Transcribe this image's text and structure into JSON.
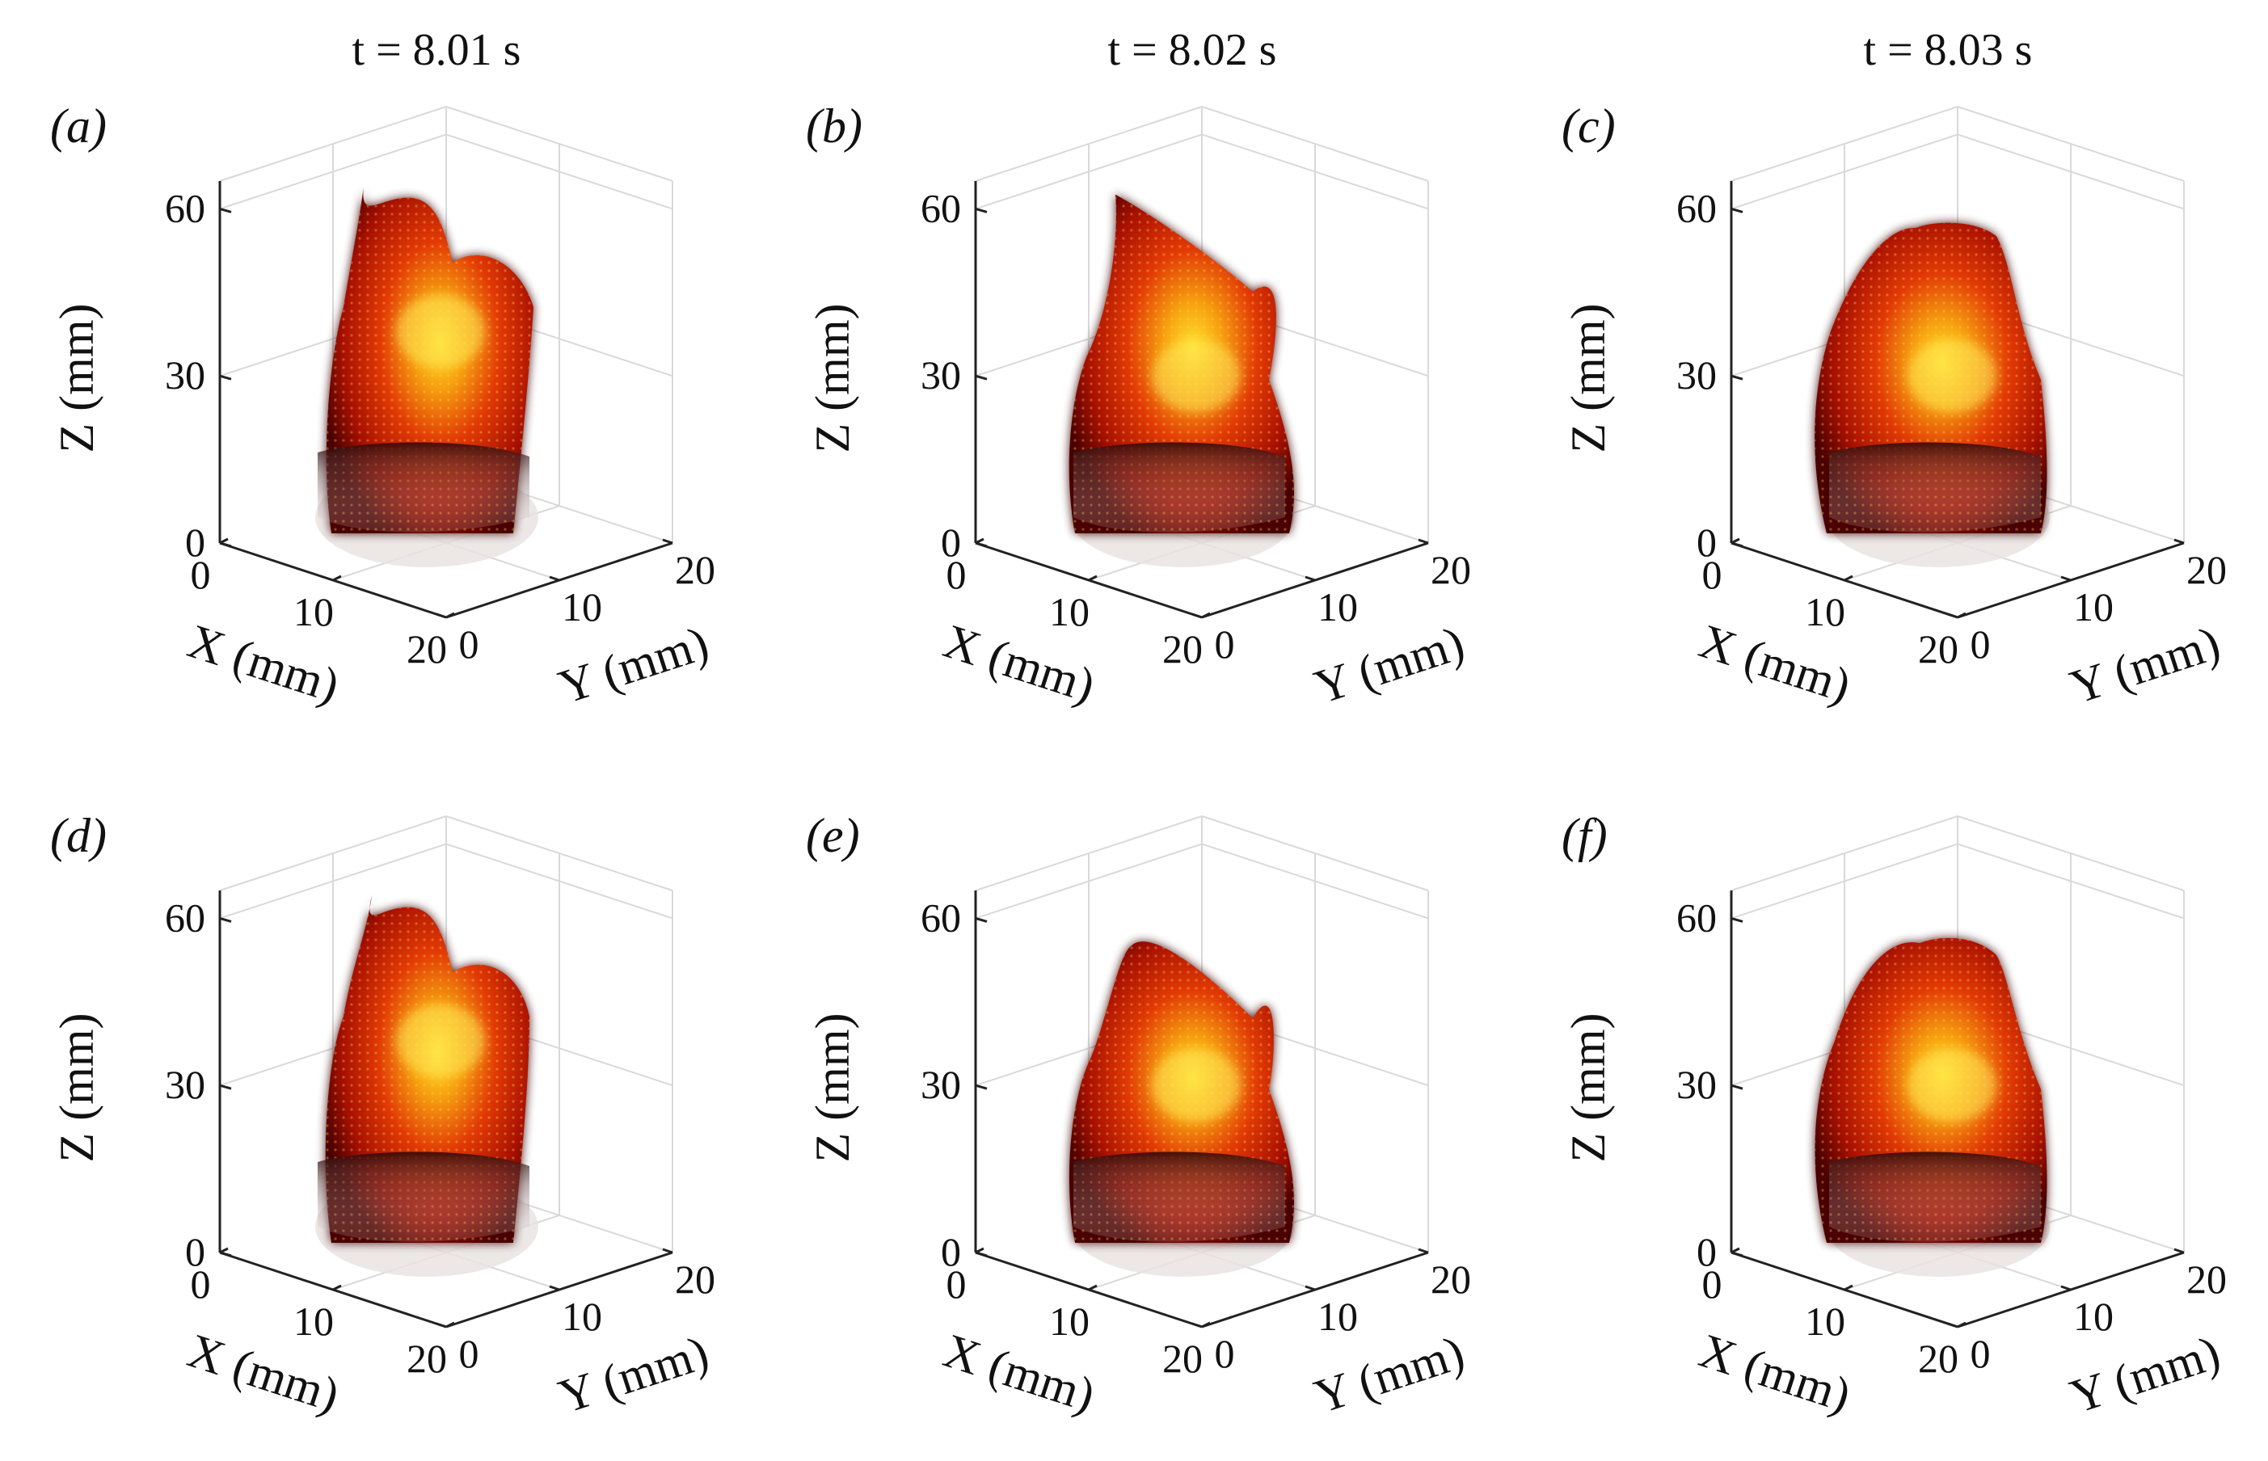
{
  "figure": {
    "column_titles": [
      "t = 8.01 s",
      "t = 8.02 s",
      "t = 8.03 s"
    ]
  },
  "chart_data": [
    {
      "panel": "(a)",
      "type": "scatter",
      "plot": "3D volumetric flame intensity point cloud",
      "time": "t = 8.01 s",
      "xlabel": "X (mm)",
      "ylabel": "Y (mm)",
      "zlabel": "Z (mm)",
      "xticks": [
        "0",
        "10",
        "20"
      ],
      "yticks": [
        "0",
        "10",
        "20"
      ],
      "zticks": [
        "0",
        "30",
        "60"
      ],
      "xlim": [
        0,
        20
      ],
      "ylim": [
        0,
        20
      ],
      "zlim": [
        0,
        65
      ],
      "flame_top_z": 62,
      "hotspot_z": 38
    },
    {
      "panel": "(b)",
      "type": "scatter",
      "plot": "3D volumetric flame intensity point cloud",
      "time": "t = 8.02 s",
      "xlabel": "X (mm)",
      "ylabel": "Y (mm)",
      "zlabel": "Z (mm)",
      "xticks": [
        "0",
        "10",
        "20"
      ],
      "yticks": [
        "0",
        "10",
        "20"
      ],
      "zticks": [
        "0",
        "30",
        "60"
      ],
      "xlim": [
        0,
        20
      ],
      "ylim": [
        0,
        20
      ],
      "zlim": [
        0,
        65
      ],
      "flame_top_z": 64,
      "hotspot_z": 30
    },
    {
      "panel": "(c)",
      "type": "scatter",
      "plot": "3D volumetric flame intensity point cloud",
      "time": "t = 8.03 s",
      "xlabel": "X (mm)",
      "ylabel": "Y (mm)",
      "zlabel": "Z (mm)",
      "xticks": [
        "0",
        "10",
        "20"
      ],
      "yticks": [
        "0",
        "10",
        "20"
      ],
      "zticks": [
        "0",
        "30",
        "60"
      ],
      "xlim": [
        0,
        20
      ],
      "ylim": [
        0,
        20
      ],
      "zlim": [
        0,
        65
      ],
      "flame_top_z": 58,
      "hotspot_z": 30
    },
    {
      "panel": "(d)",
      "type": "scatter",
      "plot": "3D volumetric flame intensity point cloud",
      "time": "t = 8.01 s",
      "xlabel": "X (mm)",
      "ylabel": "Y (mm)",
      "zlabel": "Z (mm)",
      "xticks": [
        "0",
        "10",
        "20"
      ],
      "yticks": [
        "0",
        "10",
        "20"
      ],
      "zticks": [
        "0",
        "30",
        "60"
      ],
      "xlim": [
        0,
        20
      ],
      "ylim": [
        0,
        20
      ],
      "zlim": [
        0,
        65
      ],
      "flame_top_z": 62,
      "hotspot_z": 38
    },
    {
      "panel": "(e)",
      "type": "scatter",
      "plot": "3D volumetric flame intensity point cloud",
      "time": "t = 8.02 s",
      "xlabel": "X (mm)",
      "ylabel": "Y (mm)",
      "zlabel": "Z (mm)",
      "xticks": [
        "0",
        "10",
        "20"
      ],
      "yticks": [
        "0",
        "10",
        "20"
      ],
      "zticks": [
        "0",
        "30",
        "60"
      ],
      "xlim": [
        0,
        20
      ],
      "ylim": [
        0,
        20
      ],
      "zlim": [
        0,
        65
      ],
      "flame_top_z": 58,
      "hotspot_z": 30
    },
    {
      "panel": "(f)",
      "type": "scatter",
      "plot": "3D volumetric flame intensity point cloud",
      "time": "t = 8.03 s",
      "xlabel": "X (mm)",
      "ylabel": "Y (mm)",
      "zlabel": "Z (mm)",
      "xticks": [
        "0",
        "10",
        "20"
      ],
      "yticks": [
        "0",
        "10",
        "20"
      ],
      "zticks": [
        "0",
        "30",
        "60"
      ],
      "xlim": [
        0,
        20
      ],
      "ylim": [
        0,
        20
      ],
      "zlim": [
        0,
        65
      ],
      "flame_top_z": 57,
      "hotspot_z": 30
    }
  ],
  "colors": {
    "flame_dark": "#3a0000",
    "flame_mid": "#b81800",
    "flame_bright": "#e8490a",
    "flame_hot": "#ffd21e",
    "base_cloud": "#e6dcdc"
  }
}
